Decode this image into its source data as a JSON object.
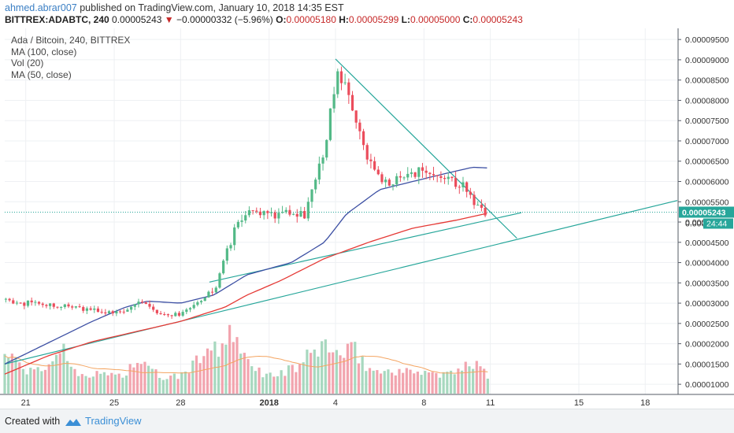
{
  "header": {
    "author": "ahmed.abrar007",
    "published": " published on TradingView.com, January 10, 2018 14:35 EST",
    "symbol": "BITTREX:ADABTC, 240",
    "last": "0.00005243",
    "change_arrow": "▼",
    "change": "−0.00000332 (−5.96%)",
    "o_label": "O:",
    "o_val": "0.00005180",
    "h_label": "H:",
    "h_val": "0.00005299",
    "l_label": "L:",
    "l_val": "0.00005000",
    "c_label": "C:",
    "c_val": "0.00005243"
  },
  "legend": {
    "title": "Ada / Bitcoin, 240, BITTREX",
    "ma100": "MA (100, close)",
    "vol": "Vol (20)",
    "ma50": "MA (50, close)"
  },
  "price_badge": {
    "price": "0.00005243",
    "partial": "0.000",
    "timer": "24:44"
  },
  "footer": {
    "created": "Created with",
    "brand": "TradingView"
  },
  "colors": {
    "up": "#53b987",
    "down": "#eb4d5c",
    "ma50": "#3c4fa3",
    "ma100": "#e53935",
    "trend": "#26a69a",
    "vol_up": "#a7d8bf",
    "vol_down": "#f2a4ae",
    "vol_ma": "#f4a460",
    "badge": "#26a69a",
    "author": "#3b7fc4"
  },
  "chart_data": {
    "type": "candlestick",
    "title": "Ada / Bitcoin, 240, BITTREX",
    "timeframe": "240",
    "x_ticks": [
      {
        "label": "21",
        "day": 21
      },
      {
        "label": "25",
        "day": 25
      },
      {
        "label": "28",
        "day": 28
      },
      {
        "label": "2018",
        "day": 32
      },
      {
        "label": "4",
        "day": 35
      },
      {
        "label": "8",
        "day": 39
      },
      {
        "label": "11",
        "day": 42
      },
      {
        "label": "15",
        "day": 46
      },
      {
        "label": "18",
        "day": 49
      }
    ],
    "y_ticks": [
      "0.00001000",
      "0.00001500",
      "0.00002000",
      "0.00002500",
      "0.00003000",
      "0.00003500",
      "0.00004000",
      "0.00004500",
      "0.00005000",
      "0.00005500",
      "0.00006000",
      "0.00006500",
      "0.00007000",
      "0.00007500",
      "0.00008000",
      "0.00008500",
      "0.00009000",
      "0.00009500"
    ],
    "ylim": [
      7.5e-06,
      9.775e-05
    ],
    "xlim": [
      20.05,
      50.45
    ],
    "grid": true,
    "candles_anchors": [
      [
        20.05,
        3.1e-05
      ],
      [
        20.5,
        3e-05
      ],
      [
        21.5,
        3e-05
      ],
      [
        22.5,
        2.95e-05
      ],
      [
        23.5,
        2.85e-05
      ],
      [
        24.5,
        2.8e-05
      ],
      [
        25.0,
        2.75e-05
      ],
      [
        25.5,
        2.85e-05
      ],
      [
        26.0,
        3.05e-05
      ],
      [
        26.5,
        2.9e-05
      ],
      [
        27.0,
        2.7e-05
      ],
      [
        27.5,
        2.65e-05
      ],
      [
        28.0,
        2.75e-05
      ],
      [
        28.5,
        2.9e-05
      ],
      [
        29.0,
        3.1e-05
      ],
      [
        29.6,
        3.4e-05
      ],
      [
        30.1,
        4.3e-05
      ],
      [
        30.6,
        5e-05
      ],
      [
        31.2,
        5.3e-05
      ],
      [
        31.6,
        5.2e-05
      ],
      [
        32.2,
        5.2e-05
      ],
      [
        33.0,
        5.25e-05
      ],
      [
        33.6,
        5.2e-05
      ],
      [
        34.2,
        6.2e-05
      ],
      [
        34.6,
        7e-05
      ],
      [
        35.0,
        8.6e-05
      ],
      [
        35.4,
        8.4e-05
      ],
      [
        35.8,
        7.6e-05
      ],
      [
        36.3,
        6.8e-05
      ],
      [
        36.8,
        6.2e-05
      ],
      [
        37.4,
        6e-05
      ],
      [
        38.0,
        6e-05
      ],
      [
        38.6,
        6.2e-05
      ],
      [
        39.2,
        6.25e-05
      ],
      [
        39.8,
        6.2e-05
      ],
      [
        40.4,
        6e-05
      ],
      [
        40.9,
        5.8e-05
      ],
      [
        41.3,
        5.4e-05
      ],
      [
        41.6,
        5.25e-05
      ],
      [
        41.9,
        5.24e-05
      ]
    ],
    "ma50_anchors": [
      [
        20.05,
        1.5e-05
      ],
      [
        21.0,
        1.75e-05
      ],
      [
        22.5,
        2.15e-05
      ],
      [
        24.0,
        2.55e-05
      ],
      [
        25.5,
        2.9e-05
      ],
      [
        26.5,
        3.05e-05
      ],
      [
        28.0,
        3e-05
      ],
      [
        29.5,
        3.2e-05
      ],
      [
        31.0,
        3.7e-05
      ],
      [
        33.0,
        4e-05
      ],
      [
        34.5,
        4.5e-05
      ],
      [
        35.5,
        5.2e-05
      ],
      [
        37.0,
        5.8e-05
      ],
      [
        38.5,
        6e-05
      ],
      [
        40.0,
        6.2e-05
      ],
      [
        41.2,
        6.35e-05
      ],
      [
        42.0,
        6.33e-05
      ]
    ],
    "ma100_anchors": [
      [
        20.05,
        1.25e-05
      ],
      [
        22.0,
        1.7e-05
      ],
      [
        24.0,
        2.05e-05
      ],
      [
        26.0,
        2.3e-05
      ],
      [
        28.0,
        2.55e-05
      ],
      [
        30.0,
        2.9e-05
      ],
      [
        31.0,
        3.2e-05
      ],
      [
        32.5,
        3.55e-05
      ],
      [
        34.5,
        4.1e-05
      ],
      [
        36.5,
        4.5e-05
      ],
      [
        38.5,
        4.85e-05
      ],
      [
        40.5,
        5.05e-05
      ],
      [
        41.9,
        5.22e-05
      ]
    ],
    "trendlines": [
      {
        "from": [
          20.05,
          1.5e-05
        ],
        "to": [
          50.45,
          5.53e-05
        ]
      },
      {
        "from": [
          29.3,
          3.52e-05
        ],
        "to": [
          43.4,
          5.23e-05
        ]
      },
      {
        "from": [
          35.0,
          9.02e-05
        ],
        "to": [
          43.2,
          4.6e-05
        ]
      }
    ],
    "volume_anchors": [
      [
        20.05,
        0.7
      ],
      [
        20.5,
        0.55
      ],
      [
        21.2,
        0.35
      ],
      [
        22.0,
        0.45
      ],
      [
        22.6,
        0.8
      ],
      [
        23.2,
        0.4
      ],
      [
        24.0,
        0.3
      ],
      [
        24.8,
        0.35
      ],
      [
        25.4,
        0.3
      ],
      [
        26.0,
        0.55
      ],
      [
        26.6,
        0.4
      ],
      [
        27.3,
        0.25
      ],
      [
        28.0,
        0.3
      ],
      [
        28.8,
        0.55
      ],
      [
        29.3,
        0.9
      ],
      [
        29.7,
        0.6
      ],
      [
        30.1,
        1.0
      ],
      [
        30.6,
        0.75
      ],
      [
        31.2,
        0.45
      ],
      [
        32.0,
        0.3
      ],
      [
        32.6,
        0.35
      ],
      [
        33.3,
        0.45
      ],
      [
        34.0,
        0.7
      ],
      [
        34.6,
        0.85
      ],
      [
        35.2,
        0.6
      ],
      [
        35.8,
        0.75
      ],
      [
        36.4,
        0.45
      ],
      [
        37.0,
        0.35
      ],
      [
        37.6,
        0.4
      ],
      [
        38.3,
        0.35
      ],
      [
        39.0,
        0.4
      ],
      [
        39.6,
        0.3
      ],
      [
        40.3,
        0.35
      ],
      [
        41.0,
        0.45
      ],
      [
        41.6,
        0.6
      ],
      [
        41.9,
        0.25
      ]
    ],
    "last_price": 5.243e-05
  }
}
